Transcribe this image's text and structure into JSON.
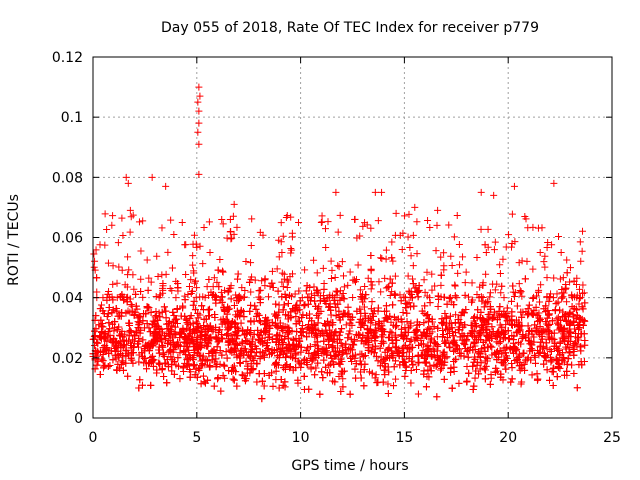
{
  "chart_data": {
    "type": "scatter",
    "title": "Day 055 of 2018, Rate Of TEC Index for receiver p779",
    "xlabel": "GPS time / hours",
    "ylabel": "ROTI / TECUs",
    "xlim": [
      0,
      25
    ],
    "ylim": [
      0,
      0.12
    ],
    "xticks": [
      0,
      5,
      10,
      15,
      20,
      25
    ],
    "yticks": [
      0,
      0.02,
      0.04,
      0.06,
      0.08,
      0.1,
      0.12
    ],
    "xtick_labels": [
      "0",
      "5",
      "10",
      "15",
      "20",
      "25"
    ],
    "ytick_labels": [
      "0",
      "0.02",
      "0.04",
      "0.06",
      "0.08",
      "0.1",
      "0.12"
    ],
    "grid": true,
    "marker": "+",
    "color": "#ff0000",
    "data_x_range": [
      0,
      23.7
    ],
    "bulk_range": [
      0.005,
      0.045
    ],
    "density_note": "dense point cloud; representative values",
    "notable_points": [
      {
        "x": 5.1,
        "y": 0.11
      },
      {
        "x": 5.15,
        "y": 0.107
      },
      {
        "x": 5.05,
        "y": 0.105
      },
      {
        "x": 5.1,
        "y": 0.102
      },
      {
        "x": 5.1,
        "y": 0.098
      },
      {
        "x": 5.05,
        "y": 0.095
      },
      {
        "x": 5.1,
        "y": 0.091
      },
      {
        "x": 5.1,
        "y": 0.081
      },
      {
        "x": 1.6,
        "y": 0.08
      },
      {
        "x": 2.85,
        "y": 0.08
      },
      {
        "x": 3.5,
        "y": 0.077
      },
      {
        "x": 1.7,
        "y": 0.078
      },
      {
        "x": 22.2,
        "y": 0.078
      },
      {
        "x": 20.3,
        "y": 0.077
      },
      {
        "x": 18.7,
        "y": 0.075
      },
      {
        "x": 11.7,
        "y": 0.075
      },
      {
        "x": 13.6,
        "y": 0.075
      },
      {
        "x": 13.9,
        "y": 0.075
      },
      {
        "x": 19.3,
        "y": 0.074
      },
      {
        "x": 6.8,
        "y": 0.071
      },
      {
        "x": 15.5,
        "y": 0.07
      },
      {
        "x": 14.6,
        "y": 0.068
      },
      {
        "x": 9.9,
        "y": 0.065
      },
      {
        "x": 11.0,
        "y": 0.065
      },
      {
        "x": 4.3,
        "y": 0.065
      },
      {
        "x": 20.8,
        "y": 0.067
      },
      {
        "x": 16.6,
        "y": 0.069
      },
      {
        "x": 1.8,
        "y": 0.069
      },
      {
        "x": 6.2,
        "y": 0.066
      },
      {
        "x": 12.6,
        "y": 0.066
      },
      {
        "x": 9.1,
        "y": 0.055
      },
      {
        "x": 23.0,
        "y": 0.05
      }
    ]
  }
}
